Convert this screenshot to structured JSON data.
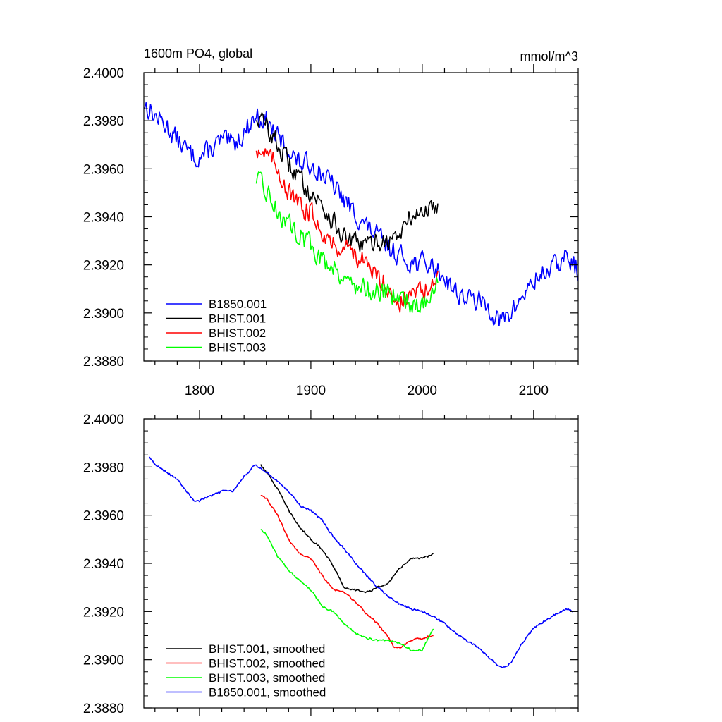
{
  "figure": {
    "title_left": "1600m PO4, global",
    "title_right": "mmol/m^3"
  },
  "chart_data": [
    {
      "type": "line",
      "title": "1600m PO4, global",
      "units": "mmol/m^3",
      "xlim": [
        1750,
        2140
      ],
      "ylim": [
        2.388,
        2.4
      ],
      "xticks": [
        1800,
        1900,
        2000,
        2100
      ],
      "xtick_labels": [
        "1800",
        "1900",
        "2000",
        "2100"
      ],
      "yticks": [
        2.388,
        2.39,
        2.392,
        2.394,
        2.396,
        2.398,
        2.4
      ],
      "ytick_labels": [
        "2.3880",
        "2.3900",
        "2.3920",
        "2.3940",
        "2.3960",
        "2.3980",
        "2.4000"
      ],
      "show_xtick_labels": true,
      "legend_position": "bottom-left",
      "series": [
        {
          "name": "B1850.001",
          "color": "#0000ff",
          "x": [
            1750,
            1760,
            1770,
            1780,
            1790,
            1795,
            1800,
            1810,
            1820,
            1830,
            1840,
            1850,
            1860,
            1870,
            1880,
            1890,
            1900,
            1910,
            1920,
            1930,
            1940,
            1950,
            1960,
            1970,
            1980,
            1990,
            2000,
            2010,
            2020,
            2030,
            2040,
            2050,
            2060,
            2070,
            2080,
            2090,
            2100,
            2110,
            2120,
            2130,
            2140
          ],
          "values": [
            2.3987,
            2.3982,
            2.3978,
            2.3972,
            2.3967,
            2.3965,
            2.3965,
            2.3968,
            2.3972,
            2.397,
            2.3975,
            2.3982,
            2.398,
            2.3973,
            2.3968,
            2.3962,
            2.3962,
            2.3958,
            2.3953,
            2.3947,
            2.3941,
            2.3936,
            2.3932,
            2.3927,
            2.3924,
            2.3921,
            2.3921,
            2.3919,
            2.3915,
            2.3909,
            2.3906,
            2.3905,
            2.3902,
            2.3896,
            2.39,
            2.3907,
            2.3913,
            2.3917,
            2.392,
            2.3923,
            2.3918
          ],
          "noise": 0.0005
        },
        {
          "name": "BHIST.001",
          "color": "#000000",
          "x": [
            1851,
            1860,
            1870,
            1880,
            1890,
            1900,
            1910,
            1920,
            1930,
            1940,
            1950,
            1960,
            1970,
            1980,
            1990,
            2000,
            2010,
            2014
          ],
          "values": [
            2.3982,
            2.3978,
            2.397,
            2.3962,
            2.3956,
            2.395,
            2.3945,
            2.3938,
            2.3931,
            2.3929,
            2.3928,
            2.393,
            2.393,
            2.3933,
            2.394,
            2.3942,
            2.3944,
            2.3946
          ],
          "noise": 0.0005
        },
        {
          "name": "BHIST.002",
          "color": "#ff0000",
          "x": [
            1851,
            1860,
            1870,
            1880,
            1890,
            1900,
            1910,
            1920,
            1930,
            1940,
            1950,
            1960,
            1970,
            1975,
            1980,
            1990,
            2000,
            2010,
            2014
          ],
          "values": [
            2.3969,
            2.3966,
            2.3961,
            2.395,
            2.3944,
            2.3942,
            2.3935,
            2.3928,
            2.3928,
            2.3925,
            2.3919,
            2.3915,
            2.3911,
            2.3906,
            2.3904,
            2.3908,
            2.3909,
            2.391,
            2.3913
          ],
          "noise": 0.0005
        },
        {
          "name": "BHIST.003",
          "color": "#00ff00",
          "x": [
            1851,
            1860,
            1870,
            1880,
            1890,
            1900,
            1910,
            1920,
            1930,
            1940,
            1950,
            1960,
            1970,
            1980,
            1990,
            2000,
            2010,
            2014
          ],
          "values": [
            2.3955,
            2.3951,
            2.3942,
            2.3937,
            2.3933,
            2.3928,
            2.3922,
            2.392,
            2.3915,
            2.3911,
            2.391,
            2.3909,
            2.3908,
            2.3907,
            2.3904,
            2.3903,
            2.391,
            2.3914
          ],
          "noise": 0.0005
        }
      ]
    },
    {
      "type": "line",
      "title": "",
      "units": "",
      "xlim": [
        1750,
        2140
      ],
      "ylim": [
        2.388,
        2.4
      ],
      "xticks": [
        1800,
        1900,
        2000,
        2100
      ],
      "xtick_labels": [
        "1800",
        "1900",
        "2000",
        "2100"
      ],
      "yticks": [
        2.388,
        2.39,
        2.392,
        2.394,
        2.396,
        2.398,
        2.4
      ],
      "ytick_labels": [
        "2.3880",
        "2.3900",
        "2.3920",
        "2.3940",
        "2.3960",
        "2.3980",
        "2.4000"
      ],
      "show_xtick_labels": false,
      "legend_position": "bottom-left",
      "series": [
        {
          "name": "BHIST.001, smoothed",
          "color": "#000000",
          "x": [
            1855,
            1860,
            1870,
            1880,
            1890,
            1900,
            1910,
            1920,
            1930,
            1935,
            1940,
            1950,
            1960,
            1970,
            1980,
            1990,
            2000,
            2010
          ],
          "values": [
            2.3981,
            2.3978,
            2.3971,
            2.3962,
            2.3955,
            2.395,
            2.3946,
            2.3939,
            2.393,
            2.3929,
            2.3929,
            2.3928,
            2.393,
            2.3932,
            2.3938,
            2.3942,
            2.3942,
            2.3944
          ],
          "noise": 8e-05
        },
        {
          "name": "BHIST.002, smoothed",
          "color": "#ff0000",
          "x": [
            1855,
            1860,
            1870,
            1880,
            1890,
            1900,
            1910,
            1920,
            1930,
            1940,
            1950,
            1960,
            1970,
            1975,
            1980,
            1990,
            2000,
            2010
          ],
          "values": [
            2.3968,
            2.3967,
            2.396,
            2.395,
            2.3944,
            2.3942,
            2.3935,
            2.3929,
            2.3928,
            2.3924,
            2.3919,
            2.3915,
            2.3909,
            2.3905,
            2.3905,
            2.3908,
            2.3909,
            2.391
          ],
          "noise": 8e-05
        },
        {
          "name": "BHIST.003, smoothed",
          "color": "#00ff00",
          "x": [
            1855,
            1860,
            1870,
            1880,
            1890,
            1900,
            1910,
            1920,
            1930,
            1940,
            1950,
            1960,
            1970,
            1980,
            1990,
            2000,
            2010
          ],
          "values": [
            2.3954,
            2.3952,
            2.3943,
            2.3937,
            2.3933,
            2.3929,
            2.3922,
            2.392,
            2.3915,
            2.3911,
            2.3909,
            2.3908,
            2.3908,
            2.3907,
            2.3904,
            2.3904,
            2.3913
          ],
          "noise": 8e-05
        },
        {
          "name": "B1850.001, smoothed",
          "color": "#0000ff",
          "x": [
            1755,
            1760,
            1770,
            1780,
            1790,
            1795,
            1800,
            1810,
            1820,
            1830,
            1840,
            1850,
            1860,
            1870,
            1880,
            1890,
            1900,
            1910,
            1920,
            1930,
            1940,
            1950,
            1960,
            1970,
            1980,
            1990,
            2000,
            2010,
            2020,
            2030,
            2040,
            2050,
            2060,
            2070,
            2075,
            2080,
            2090,
            2100,
            2110,
            2120,
            2130,
            2135
          ],
          "values": [
            2.3984,
            2.3981,
            2.3978,
            2.3975,
            2.3969,
            2.3966,
            2.3966,
            2.3968,
            2.397,
            2.397,
            2.3976,
            2.3981,
            2.3978,
            2.3974,
            2.397,
            2.3964,
            2.3962,
            2.3958,
            2.3951,
            2.3946,
            2.394,
            2.3935,
            2.393,
            2.3926,
            2.3923,
            2.3921,
            2.392,
            2.3918,
            2.3915,
            2.3911,
            2.3908,
            2.3905,
            2.3901,
            2.3897,
            2.3897,
            2.3899,
            2.3907,
            2.3913,
            2.3916,
            2.3919,
            2.3921,
            2.392
          ],
          "noise": 8e-05
        }
      ]
    }
  ]
}
